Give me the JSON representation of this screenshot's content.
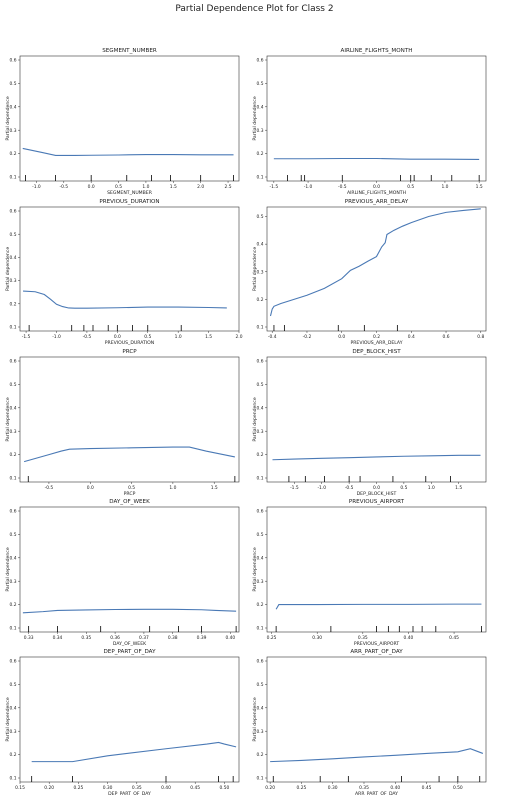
{
  "figure": {
    "suptitle": "Partial Dependence Plot for Class 2",
    "ylabel": "Partial dependence",
    "line_color": "#4a79b5"
  },
  "chart_data": [
    {
      "type": "line",
      "title": "SEGMENT_NUMBER",
      "xlabel": "SEGMENT_NUMBER",
      "ylabel": "Partial dependence",
      "xlim": [
        -1.3,
        2.7
      ],
      "ylim": [
        0.1,
        0.6
      ],
      "xticks": [
        -1.0,
        -0.5,
        0.0,
        0.5,
        1.0,
        1.5,
        2.0,
        2.5
      ],
      "xtick_labels": [
        "-1.0",
        "-0.5",
        "0.0",
        "0.5",
        "1.0",
        "1.5",
        "2.0",
        "2.5"
      ],
      "yticks": [
        0.1,
        0.2,
        0.3,
        0.4,
        0.5,
        0.6
      ],
      "ytick_labels": [
        "0.1",
        "0.2",
        "0.3",
        "0.4",
        "0.5",
        "0.6"
      ],
      "x": [
        -1.25,
        -0.9,
        -0.65,
        -0.3,
        0.0,
        0.5,
        1.0,
        1.5,
        2.0,
        2.6
      ],
      "y": [
        0.222,
        0.205,
        0.192,
        0.192,
        0.193,
        0.194,
        0.196,
        0.196,
        0.195,
        0.195
      ],
      "deciles": [
        -1.2,
        -0.65,
        0.0,
        0.65,
        1.1,
        1.45,
        2.0,
        2.6
      ]
    },
    {
      "type": "line",
      "title": "AIRLINE_FLIGHTS_MONTH",
      "xlabel": "AIRLINE_FLIGHTS_MONTH",
      "ylabel": "Partial dependence",
      "xlim": [
        -1.6,
        1.6
      ],
      "ylim": [
        0.1,
        0.6
      ],
      "xticks": [
        -1.5,
        -1.0,
        -0.5,
        0.0,
        0.5,
        1.0,
        1.5
      ],
      "xtick_labels": [
        "-1.5",
        "-1.0",
        "-0.5",
        "0.0",
        "0.5",
        "1.0",
        "1.5"
      ],
      "yticks": [
        0.1,
        0.2,
        0.3,
        0.4,
        0.5,
        0.6
      ],
      "ytick_labels": [
        "0.1",
        "0.2",
        "0.3",
        "0.4",
        "0.5",
        "0.6"
      ],
      "x": [
        -1.5,
        -1.0,
        -0.5,
        0.0,
        0.5,
        1.0,
        1.5
      ],
      "y": [
        0.178,
        0.178,
        0.179,
        0.179,
        0.176,
        0.176,
        0.175
      ],
      "deciles": [
        -1.3,
        -1.1,
        -1.05,
        -0.5,
        0.35,
        0.5,
        0.55,
        0.8,
        1.1,
        1.5
      ]
    },
    {
      "type": "line",
      "title": "PREVIOUS_DURATION",
      "xlabel": "PREVIOUS_DURATION",
      "ylabel": "Partial dependence",
      "xlim": [
        -1.6,
        2.0
      ],
      "ylim": [
        0.1,
        0.6
      ],
      "xticks": [
        -1.5,
        -1.0,
        -0.5,
        0.0,
        0.5,
        1.0,
        1.5,
        2.0
      ],
      "xtick_labels": [
        "-1.5",
        "-1.0",
        "-0.5",
        "0.0",
        "0.5",
        "1.0",
        "1.5",
        "2.0"
      ],
      "yticks": [
        0.1,
        0.2,
        0.3,
        0.4,
        0.5,
        0.6
      ],
      "ytick_labels": [
        "0.1",
        "0.2",
        "0.3",
        "0.4",
        "0.5",
        "0.6"
      ],
      "x": [
        -1.55,
        -1.35,
        -1.2,
        -1.1,
        -1.0,
        -0.9,
        -0.8,
        -0.7,
        -0.5,
        0.0,
        0.5,
        1.0,
        1.5,
        1.8
      ],
      "y": [
        0.255,
        0.252,
        0.24,
        0.22,
        0.198,
        0.188,
        0.182,
        0.181,
        0.181,
        0.183,
        0.186,
        0.186,
        0.184,
        0.182
      ],
      "deciles": [
        -1.45,
        -0.75,
        -0.55,
        -0.4,
        -0.15,
        0.0,
        0.25,
        0.5,
        1.05
      ]
    },
    {
      "type": "line",
      "title": "PREVIOUS_ARR_DELAY",
      "xlabel": "PREVIOUS_ARR_DELAY",
      "ylabel": "Partial dependence",
      "xlim": [
        -0.43,
        0.83
      ],
      "ylim": [
        0.1,
        0.52
      ],
      "xticks": [
        -0.4,
        -0.2,
        0.0,
        0.2,
        0.4,
        0.6,
        0.8
      ],
      "xtick_labels": [
        "-0.4",
        "-0.2",
        "0.0",
        "0.2",
        "0.4",
        "0.6",
        "0.8"
      ],
      "yticks": [
        0.1,
        0.2,
        0.3,
        0.4,
        0.5
      ],
      "ytick_labels": [
        "0.1",
        "0.2",
        "0.3",
        "0.4",
        "0.5"
      ],
      "x": [
        -0.41,
        -0.4,
        -0.39,
        -0.35,
        -0.3,
        -0.2,
        -0.1,
        0.0,
        0.05,
        0.1,
        0.15,
        0.2,
        0.23,
        0.25,
        0.26,
        0.3,
        0.35,
        0.4,
        0.5,
        0.6,
        0.7,
        0.8
      ],
      "y": [
        0.14,
        0.165,
        0.175,
        0.185,
        0.195,
        0.215,
        0.24,
        0.275,
        0.305,
        0.32,
        0.338,
        0.355,
        0.39,
        0.405,
        0.435,
        0.45,
        0.465,
        0.478,
        0.5,
        0.515,
        0.522,
        0.528
      ],
      "deciles": [
        -0.39,
        -0.33,
        -0.02,
        0.13,
        0.32
      ]
    },
    {
      "type": "line",
      "title": "PRCP",
      "xlabel": "PRCP",
      "ylabel": "Partial dependence",
      "xlim": [
        -0.85,
        1.8
      ],
      "ylim": [
        0.1,
        0.6
      ],
      "xticks": [
        -0.5,
        0.0,
        0.5,
        1.0,
        1.5
      ],
      "xtick_labels": [
        "-0.5",
        "0.0",
        "0.5",
        "1.0",
        "1.5"
      ],
      "yticks": [
        0.1,
        0.2,
        0.3,
        0.4,
        0.5,
        0.6
      ],
      "ytick_labels": [
        "0.1",
        "0.2",
        "0.3",
        "0.4",
        "0.5",
        "0.6"
      ],
      "x": [
        -0.8,
        -0.65,
        -0.5,
        -0.35,
        -0.25,
        0.0,
        0.5,
        1.0,
        1.2,
        1.4,
        1.75
      ],
      "y": [
        0.17,
        0.185,
        0.2,
        0.215,
        0.223,
        0.226,
        0.229,
        0.232,
        0.232,
        0.215,
        0.19
      ],
      "deciles": [
        -0.75,
        1.75
      ]
    },
    {
      "type": "line",
      "title": "DEP_BLOCK_HIST",
      "xlabel": "DEP_BLOCK_HIST",
      "ylabel": "Partial dependence",
      "xlim": [
        -2.0,
        2.0
      ],
      "ylim": [
        0.1,
        0.6
      ],
      "xticks": [
        -1.5,
        -1.0,
        -0.5,
        0.0,
        0.5,
        1.0,
        1.5
      ],
      "xtick_labels": [
        "-1.5",
        "-1.0",
        "-0.5",
        "0.0",
        "0.5",
        "1.0",
        "1.5"
      ],
      "yticks": [
        0.1,
        0.2,
        0.3,
        0.4,
        0.5,
        0.6
      ],
      "ytick_labels": [
        "0.1",
        "0.2",
        "0.3",
        "0.4",
        "0.5",
        "0.6"
      ],
      "x": [
        -1.9,
        -1.5,
        -1.0,
        -0.5,
        0.0,
        0.5,
        1.0,
        1.5,
        1.9
      ],
      "y": [
        0.178,
        0.181,
        0.184,
        0.187,
        0.19,
        0.193,
        0.195,
        0.197,
        0.197
      ],
      "deciles": [
        -1.6,
        -1.3,
        -0.95,
        -0.5,
        -0.3,
        0.3,
        0.9,
        1.35
      ]
    },
    {
      "type": "line",
      "title": "DAY_OF_WEEK",
      "xlabel": "DAY_OF_WEEK",
      "ylabel": "Partial dependence",
      "xlim": [
        0.327,
        0.403
      ],
      "ylim": [
        0.1,
        0.6
      ],
      "xticks": [
        0.33,
        0.34,
        0.35,
        0.36,
        0.37,
        0.38,
        0.39,
        0.4
      ],
      "xtick_labels": [
        "0.33",
        "0.34",
        "0.35",
        "0.36",
        "0.37",
        "0.38",
        "0.39",
        "0.40"
      ],
      "yticks": [
        0.1,
        0.2,
        0.3,
        0.4,
        0.5,
        0.6
      ],
      "ytick_labels": [
        "0.1",
        "0.2",
        "0.3",
        "0.4",
        "0.5",
        "0.6"
      ],
      "x": [
        0.328,
        0.335,
        0.34,
        0.35,
        0.36,
        0.37,
        0.38,
        0.39,
        0.395,
        0.402
      ],
      "y": [
        0.165,
        0.17,
        0.175,
        0.177,
        0.179,
        0.18,
        0.18,
        0.178,
        0.175,
        0.172
      ],
      "deciles": [
        0.33,
        0.34,
        0.355,
        0.372,
        0.382,
        0.39,
        0.402
      ]
    },
    {
      "type": "line",
      "title": "PREVIOUS_AIRPORT",
      "xlabel": "PREVIOUS_AIRPORT",
      "ylabel": "Partial dependence",
      "xlim": [
        0.245,
        0.485
      ],
      "ylim": [
        0.1,
        0.6
      ],
      "xticks": [
        0.25,
        0.3,
        0.35,
        0.4,
        0.45
      ],
      "xtick_labels": [
        "0.25",
        "0.30",
        "0.35",
        "0.40",
        "0.45"
      ],
      "yticks": [
        0.1,
        0.2,
        0.3,
        0.4,
        0.5,
        0.6
      ],
      "ytick_labels": [
        "0.1",
        "0.2",
        "0.3",
        "0.4",
        "0.5",
        "0.6"
      ],
      "x": [
        0.255,
        0.258,
        0.3,
        0.35,
        0.4,
        0.45,
        0.48
      ],
      "y": [
        0.18,
        0.2,
        0.2,
        0.201,
        0.201,
        0.202,
        0.202
      ],
      "deciles": [
        0.255,
        0.315,
        0.365,
        0.378,
        0.39,
        0.405,
        0.415,
        0.43,
        0.48
      ]
    },
    {
      "type": "line",
      "title": "DEP_PART_OF_DAY",
      "xlabel": "DEP_PART_OF_DAY",
      "ylabel": "Partial dependence",
      "xlim": [
        0.15,
        0.525
      ],
      "ylim": [
        0.1,
        0.6
      ],
      "xticks": [
        0.15,
        0.2,
        0.25,
        0.3,
        0.35,
        0.4,
        0.45,
        0.5
      ],
      "xtick_labels": [
        "0.15",
        "0.20",
        "0.25",
        "0.30",
        "0.35",
        "0.40",
        "0.45",
        "0.50"
      ],
      "yticks": [
        0.1,
        0.2,
        0.3,
        0.4,
        0.5,
        0.6
      ],
      "ytick_labels": [
        "0.1",
        "0.2",
        "0.3",
        "0.4",
        "0.5",
        "0.6"
      ],
      "x": [
        0.17,
        0.24,
        0.3,
        0.4,
        0.47,
        0.49,
        0.5,
        0.52
      ],
      "y": [
        0.17,
        0.17,
        0.195,
        0.225,
        0.245,
        0.252,
        0.245,
        0.233
      ],
      "deciles": [
        0.17,
        0.24,
        0.4,
        0.49,
        0.515
      ]
    },
    {
      "type": "line",
      "title": "ARR_PART_OF_DAY",
      "xlabel": "ARR_PART_OF_DAY",
      "ylabel": "Partial dependence",
      "xlim": [
        0.195,
        0.545
      ],
      "ylim": [
        0.1,
        0.6
      ],
      "xticks": [
        0.2,
        0.25,
        0.3,
        0.35,
        0.4,
        0.45,
        0.5
      ],
      "xtick_labels": [
        "0.20",
        "0.25",
        "0.30",
        "0.35",
        "0.40",
        "0.45",
        "0.50"
      ],
      "yticks": [
        0.1,
        0.2,
        0.3,
        0.4,
        0.5,
        0.6
      ],
      "ytick_labels": [
        "0.1",
        "0.2",
        "0.3",
        "0.4",
        "0.5",
        "0.6"
      ],
      "x": [
        0.2,
        0.25,
        0.3,
        0.35,
        0.4,
        0.45,
        0.5,
        0.52,
        0.54
      ],
      "y": [
        0.17,
        0.175,
        0.182,
        0.19,
        0.197,
        0.205,
        0.212,
        0.225,
        0.205
      ],
      "deciles": [
        0.205,
        0.28,
        0.325,
        0.41,
        0.47,
        0.5,
        0.535
      ]
    }
  ]
}
